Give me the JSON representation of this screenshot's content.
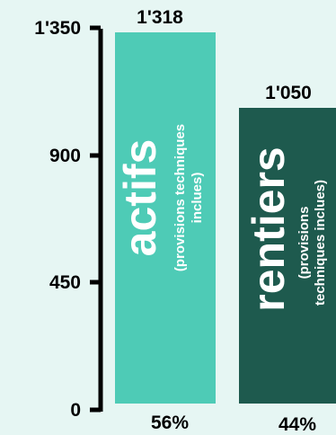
{
  "chart_data": {
    "type": "bar",
    "categories": [
      "actifs",
      "rentiers"
    ],
    "values": [
      1318,
      1050
    ],
    "value_labels": [
      "1'318",
      "1'050"
    ],
    "percent_labels": [
      "56%",
      "44%"
    ],
    "bar_notes": [
      [
        "(provisions techniques",
        "inclues)"
      ],
      [
        "(provisions",
        "techniques inclues)"
      ]
    ],
    "colors": [
      "#4ecbb6",
      "#1e5a4e"
    ],
    "ylim": [
      0,
      1350
    ],
    "yticks": [
      0,
      450,
      900,
      1350
    ],
    "ytick_labels": [
      "0",
      "450",
      "900",
      "1'350"
    ],
    "grid": false,
    "legend": "none"
  }
}
